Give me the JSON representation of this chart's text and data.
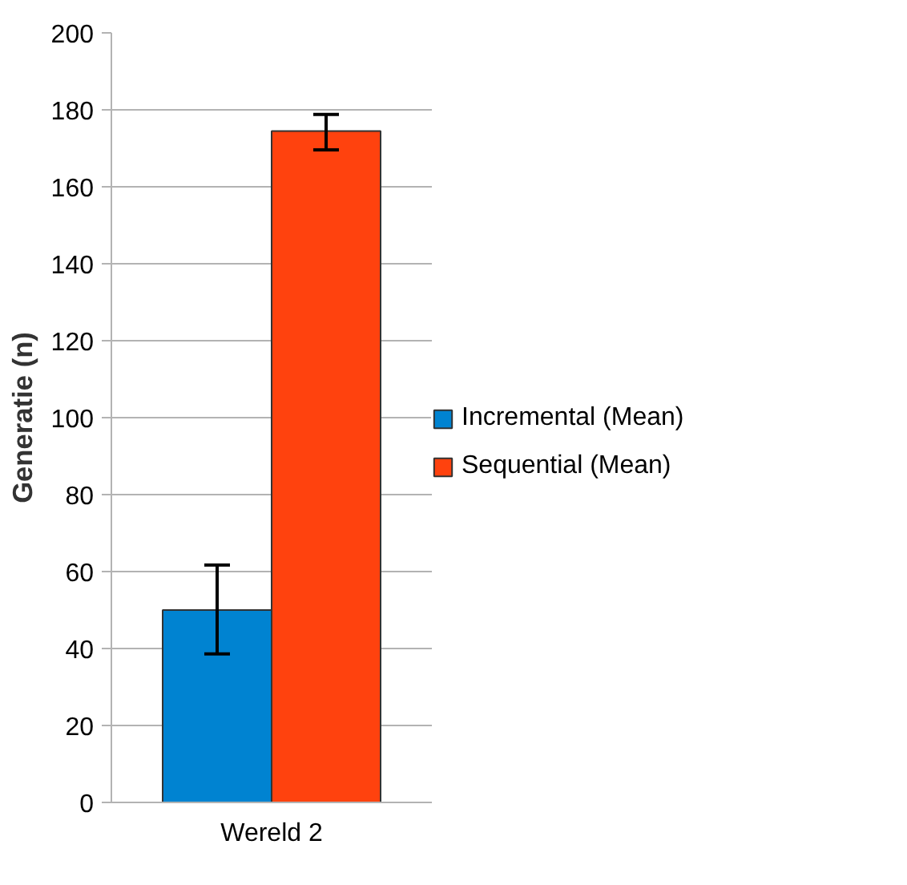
{
  "chart_data": {
    "type": "bar",
    "ylabel": "Generatie (n)",
    "categories": [
      "Wereld 2"
    ],
    "series": [
      {
        "name": "Incremental (Mean)",
        "color": "#0083d1",
        "values": [
          50
        ],
        "errors": [
          [
            38.6,
            61.7
          ]
        ]
      },
      {
        "name": "Sequential (Mean)",
        "color": "#ff420e",
        "values": [
          174.5
        ],
        "errors": [
          [
            169.6,
            178.8
          ]
        ]
      }
    ],
    "ylim": [
      0,
      200
    ],
    "yticks": [
      0,
      20,
      40,
      60,
      80,
      100,
      120,
      140,
      160,
      180,
      200
    ],
    "grid": "y",
    "legend": "right"
  }
}
